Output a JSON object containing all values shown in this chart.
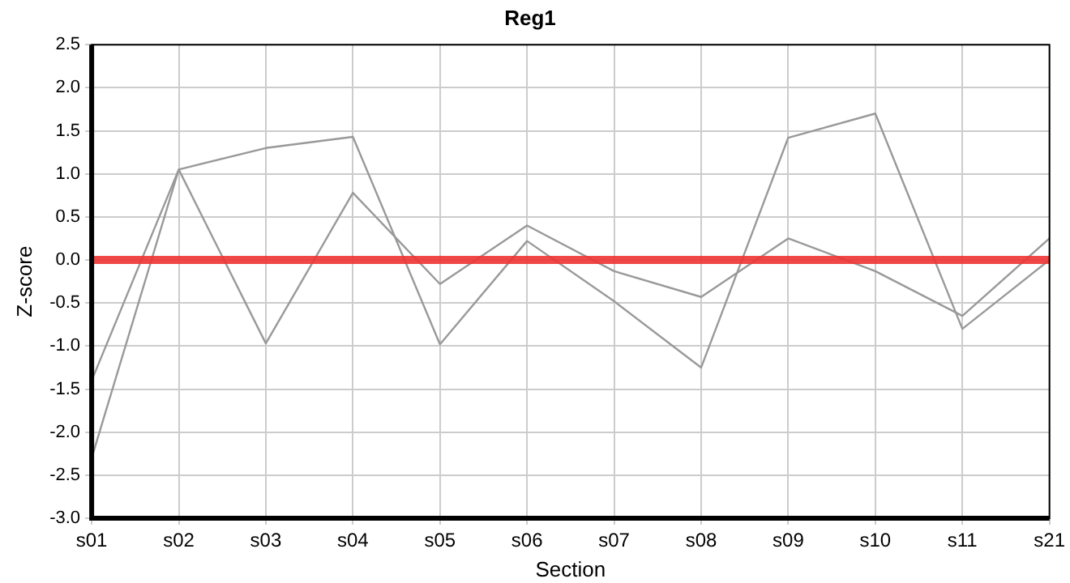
{
  "chart_data": {
    "type": "line",
    "title": "Reg1",
    "xlabel": "Section",
    "ylabel": "Z-score",
    "categories": [
      "s01",
      "s02",
      "s03",
      "s04",
      "s05",
      "s06",
      "s07",
      "s08",
      "s09",
      "s10",
      "s11",
      "s21"
    ],
    "series": [
      {
        "color": "#999999",
        "values": [
          -1.4,
          1.05,
          1.3,
          1.43,
          -0.98,
          0.22,
          -0.48,
          -1.25,
          1.42,
          1.7,
          -0.8,
          0.0
        ]
      },
      {
        "color": "#999999",
        "values": [
          -2.3,
          1.05,
          -0.97,
          0.78,
          -0.28,
          0.4,
          -0.13,
          -0.43,
          0.25,
          -0.13,
          -0.65,
          0.25
        ]
      }
    ],
    "ylim": [
      -3.0,
      2.5
    ],
    "yticks": [
      {
        "value": -3,
        "label": "-3.0"
      },
      {
        "value": -2.5,
        "label": "-2.5"
      },
      {
        "value": -2,
        "label": "-2.0"
      },
      {
        "value": -1.5,
        "label": "-1.5"
      },
      {
        "value": -1,
        "label": "-1.0"
      },
      {
        "value": -0.5,
        "label": "-0.5"
      },
      {
        "value": 0,
        "label": "0.0"
      },
      {
        "value": 0.5,
        "label": "0.5"
      },
      {
        "value": 1,
        "label": "1.0"
      },
      {
        "value": 1.5,
        "label": "1.5"
      },
      {
        "value": 2,
        "label": "2.0"
      },
      {
        "value": 2.5,
        "label": "2.5"
      }
    ],
    "ref_lines": [
      {
        "axis": "y",
        "value": 0,
        "color": "#ee3333"
      }
    ],
    "grid": true,
    "legend": false,
    "marker": "none",
    "line_style": "solid"
  }
}
